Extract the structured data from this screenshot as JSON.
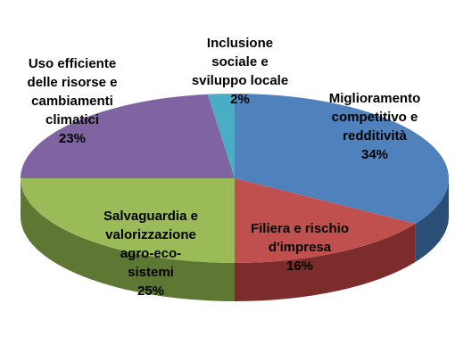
{
  "chart_data": {
    "type": "pie",
    "style": "3d",
    "slices": [
      {
        "label": "Miglioramento competitivo e redditività",
        "value": 34,
        "value_label": "34%",
        "color": "#4F81BD",
        "side_color": "#2B4E77"
      },
      {
        "label": "Filiera e rischio d'impresa",
        "value": 16,
        "value_label": "16%",
        "color": "#C0504D",
        "side_color": "#7C2C2A"
      },
      {
        "label": "Salvaguardia e valorizzazione agro-eco-sistemi",
        "value": 25,
        "value_label": "25%",
        "color": "#9BBB59",
        "side_color": "#5E7834"
      },
      {
        "label": "Uso efficiente delle risorse e cambiamenti climatici",
        "value": 23,
        "value_label": "23%",
        "color": "#8064A2",
        "side_color": "#4D3A66"
      },
      {
        "label": "Inclusione sociale e sviluppo locale",
        "value": 2,
        "value_label": "2%",
        "color": "#4BACC6",
        "side_color": "#2C6E80"
      }
    ]
  }
}
